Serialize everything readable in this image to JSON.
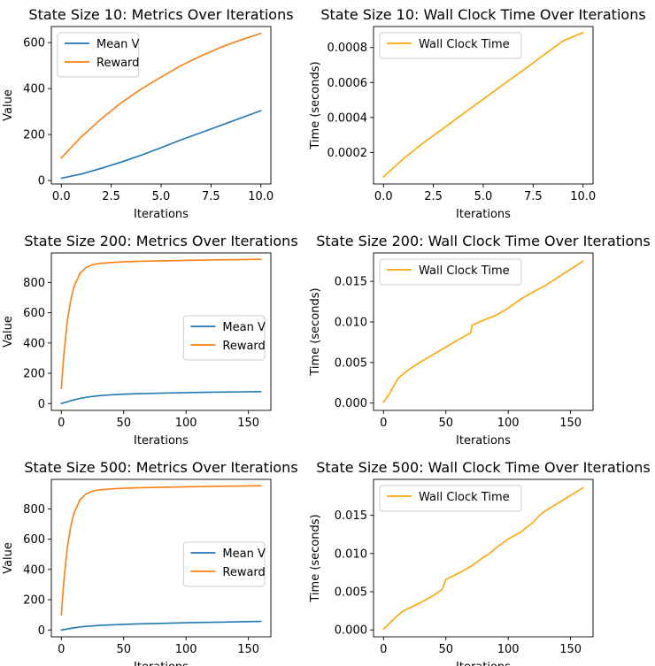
{
  "colors": {
    "mean_v": "#1f77b4",
    "reward": "#ff7f0e",
    "wall_clock": "#ffa500"
  },
  "chart_data": [
    {
      "type": "line",
      "title": "State Size 10: Metrics Over Iterations",
      "xlabel": "Iterations",
      "ylabel": "Value",
      "xlim": [
        -0.5,
        10.5
      ],
      "ylim": [
        -15,
        670
      ],
      "xticks": [
        0,
        2.5,
        5,
        7.5,
        10
      ],
      "xtick_labels": [
        "0.0",
        "2.5",
        "5.0",
        "7.5",
        "10.0"
      ],
      "yticks": [
        0,
        200,
        400,
        600
      ],
      "ytick_labels": [
        "0",
        "200",
        "400",
        "600"
      ],
      "legend": "top-left",
      "series": [
        {
          "name": "Mean V",
          "color": "#1f77b4",
          "x": [
            0,
            1,
            2,
            3,
            4,
            5,
            6,
            7,
            8,
            9,
            10
          ],
          "y": [
            10,
            28,
            53,
            80,
            110,
            143,
            177,
            208,
            240,
            272,
            304
          ]
        },
        {
          "name": "Reward",
          "color": "#ff7f0e",
          "x": [
            0,
            1,
            2,
            3,
            4,
            5,
            6,
            7,
            8,
            9,
            10
          ],
          "y": [
            98,
            190,
            268,
            338,
            398,
            450,
            500,
            542,
            580,
            612,
            640
          ]
        }
      ]
    },
    {
      "type": "line",
      "title": "State Size 10: Wall Clock Time Over Iterations",
      "xlabel": "Iterations",
      "ylabel": "Time (seconds)",
      "xlim": [
        -0.5,
        10.5
      ],
      "ylim": [
        2e-05,
        0.00092
      ],
      "xticks": [
        0,
        2.5,
        5,
        7.5,
        10
      ],
      "xtick_labels": [
        "0.0",
        "2.5",
        "5.0",
        "7.5",
        "10.0"
      ],
      "yticks": [
        0.0002,
        0.0004,
        0.0006,
        0.0008
      ],
      "ytick_labels": [
        "0.0002",
        "0.0004",
        "0.0006",
        "0.0008"
      ],
      "legend": "top-left",
      "series": [
        {
          "name": "Wall Clock Time",
          "color": "#ffa500",
          "x": [
            0,
            1,
            2,
            3,
            4,
            5,
            6,
            7,
            8,
            9,
            10
          ],
          "y": [
            6e-05,
            0.000165,
            0.000255,
            0.000338,
            0.000422,
            0.000505,
            0.000588,
            0.00067,
            0.000755,
            0.000838,
            0.000885
          ]
        }
      ]
    },
    {
      "type": "line",
      "title": "State Size 200: Metrics Over Iterations",
      "xlabel": "Iterations",
      "ylabel": "Value",
      "xlim": [
        -8,
        168
      ],
      "ylim": [
        -45,
        995
      ],
      "xticks": [
        0,
        50,
        100,
        150
      ],
      "xtick_labels": [
        "0",
        "50",
        "100",
        "150"
      ],
      "yticks": [
        0,
        200,
        400,
        600,
        800
      ],
      "ytick_labels": [
        "0",
        "200",
        "400",
        "600",
        "800"
      ],
      "legend": "center-right",
      "series": [
        {
          "name": "Mean V",
          "color": "#1f77b4",
          "x": [
            0,
            5,
            10,
            15,
            20,
            30,
            40,
            50,
            60,
            80,
            100,
            120,
            140,
            160
          ],
          "y": [
            0,
            12,
            24,
            34,
            42,
            52,
            58,
            62,
            65,
            69,
            72,
            75,
            77,
            79
          ]
        },
        {
          "name": "Reward",
          "color": "#ff7f0e",
          "x": [
            0,
            2,
            5,
            8,
            10,
            15,
            20,
            25,
            30,
            40,
            50,
            60,
            80,
            100,
            120,
            140,
            160
          ],
          "y": [
            100,
            320,
            560,
            700,
            770,
            860,
            900,
            917,
            925,
            932,
            936,
            939,
            943,
            946,
            949,
            951,
            953
          ]
        }
      ]
    },
    {
      "type": "line",
      "title": "State Size 200: Wall Clock Time Over Iterations",
      "xlabel": "Iterations",
      "ylabel": "Time (seconds)",
      "xlim": [
        -8,
        168
      ],
      "ylim": [
        -0.0009,
        0.0185
      ],
      "xticks": [
        0,
        50,
        100,
        150
      ],
      "xtick_labels": [
        "0",
        "50",
        "100",
        "150"
      ],
      "yticks": [
        0,
        0.005,
        0.01,
        0.015
      ],
      "ytick_labels": [
        "0.000",
        "0.005",
        "0.010",
        "0.015"
      ],
      "legend": "top-left",
      "series": [
        {
          "name": "Wall Clock Time",
          "color": "#ffa500",
          "x": [
            0,
            5,
            10,
            12,
            20,
            30,
            40,
            50,
            60,
            70,
            71,
            80,
            90,
            100,
            110,
            120,
            130,
            140,
            150,
            160
          ],
          "y": [
            0.0001,
            0.0012,
            0.0026,
            0.0031,
            0.0041,
            0.0051,
            0.006,
            0.0069,
            0.0078,
            0.0087,
            0.0096,
            0.0102,
            0.0108,
            0.0117,
            0.0128,
            0.0137,
            0.0145,
            0.0155,
            0.0165,
            0.0175
          ]
        }
      ]
    },
    {
      "type": "line",
      "title": "State Size 500: Metrics Over Iterations",
      "xlabel": "Iterations",
      "ylabel": "Value",
      "xlim": [
        -8,
        168
      ],
      "ylim": [
        -45,
        995
      ],
      "xticks": [
        0,
        50,
        100,
        150
      ],
      "xtick_labels": [
        "0",
        "50",
        "100",
        "150"
      ],
      "yticks": [
        0,
        200,
        400,
        600,
        800
      ],
      "ytick_labels": [
        "0",
        "200",
        "400",
        "600",
        "800"
      ],
      "legend": "center-right",
      "series": [
        {
          "name": "Mean V",
          "color": "#1f77b4",
          "x": [
            0,
            5,
            10,
            15,
            20,
            30,
            40,
            50,
            60,
            80,
            100,
            120,
            140,
            160
          ],
          "y": [
            0,
            7,
            14,
            20,
            24,
            30,
            34,
            37,
            40,
            44,
            48,
            51,
            54,
            57
          ]
        },
        {
          "name": "Reward",
          "color": "#ff7f0e",
          "x": [
            0,
            2,
            5,
            8,
            10,
            15,
            20,
            25,
            30,
            40,
            50,
            60,
            80,
            100,
            120,
            140,
            160
          ],
          "y": [
            100,
            320,
            560,
            700,
            770,
            860,
            900,
            917,
            925,
            932,
            936,
            939,
            943,
            946,
            949,
            951,
            953
          ]
        }
      ]
    },
    {
      "type": "line",
      "title": "State Size 500: Wall Clock Time Over Iterations",
      "xlabel": "Iterations",
      "ylabel": "Time (seconds)",
      "xlim": [
        -8,
        168
      ],
      "ylim": [
        -0.0009,
        0.0197
      ],
      "xticks": [
        0,
        50,
        100,
        150
      ],
      "xtick_labels": [
        "0",
        "50",
        "100",
        "150"
      ],
      "yticks": [
        0,
        0.005,
        0.01,
        0.015
      ],
      "ytick_labels": [
        "0.000",
        "0.005",
        "0.010",
        "0.015"
      ],
      "legend": "top-left",
      "series": [
        {
          "name": "Wall Clock Time",
          "color": "#ffa500",
          "x": [
            0,
            5,
            10,
            15,
            20,
            30,
            40,
            47,
            50,
            60,
            70,
            80,
            85,
            90,
            100,
            110,
            120,
            125,
            130,
            140,
            150,
            160
          ],
          "y": [
            0.0001,
            0.0009,
            0.0017,
            0.0024,
            0.0028,
            0.0036,
            0.0045,
            0.0053,
            0.0066,
            0.0074,
            0.0083,
            0.0095,
            0.01,
            0.0107,
            0.0119,
            0.0128,
            0.0141,
            0.015,
            0.0156,
            0.0166,
            0.0176,
            0.0186
          ]
        }
      ]
    }
  ]
}
